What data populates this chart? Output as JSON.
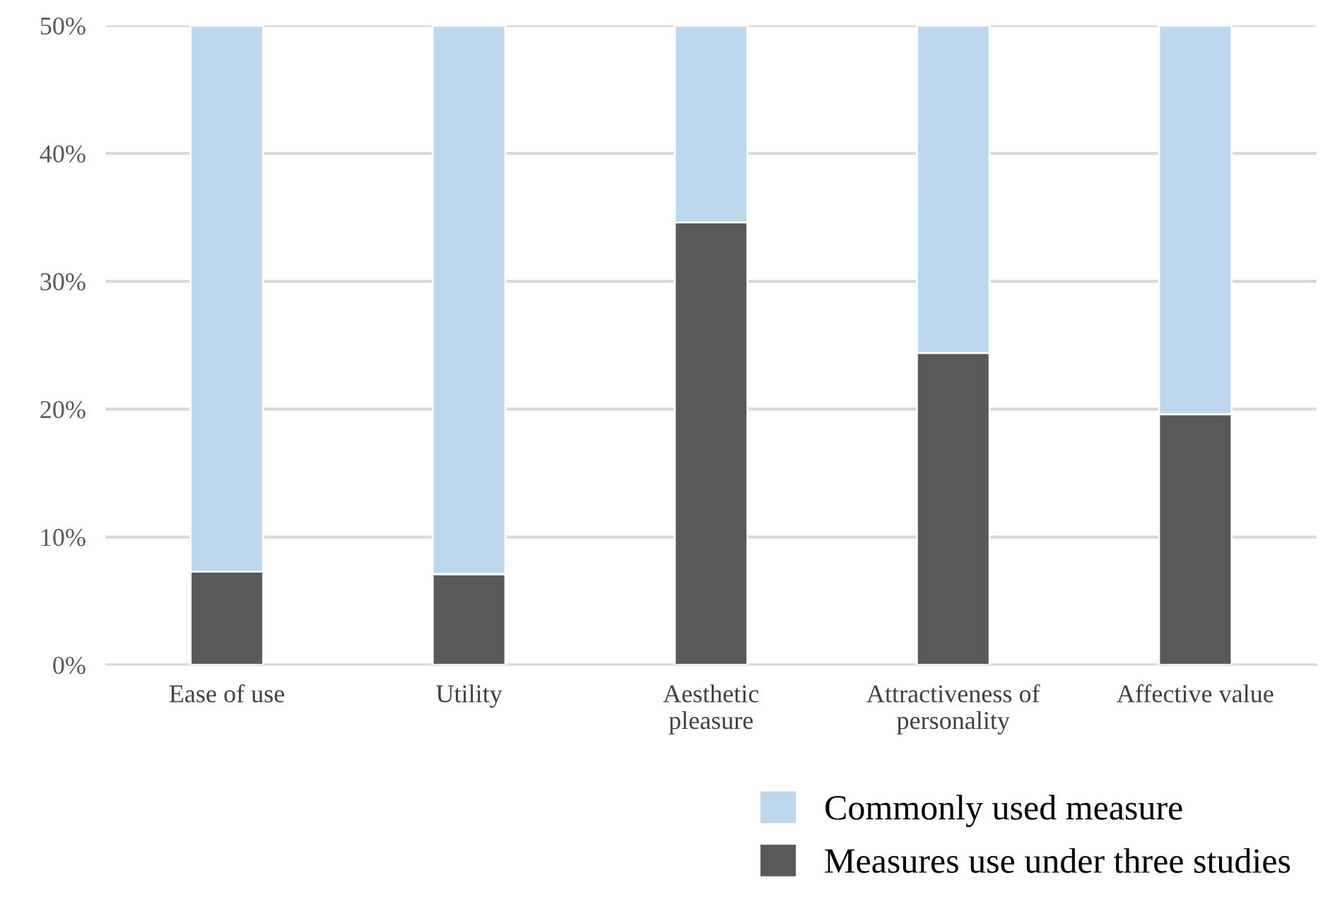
{
  "chart_data": {
    "type": "bar",
    "stacked": true,
    "categories": [
      "Ease of use",
      "Utility",
      "Aesthetic\npleasure",
      "Attractiveness of\npersonality",
      "Affective value"
    ],
    "series": [
      {
        "name": "Measures use under three studies",
        "color": "#595959",
        "values": [
          7.3,
          7.1,
          34.6,
          24.4,
          19.6
        ]
      },
      {
        "name": "Commonly used measure",
        "color": "#bdd7ee",
        "values": [
          42.7,
          42.9,
          15.4,
          25.6,
          30.4
        ]
      }
    ],
    "ylim": [
      0,
      50
    ],
    "yticks": [
      {
        "value": 0,
        "label": "0%"
      },
      {
        "value": 10,
        "label": "10%"
      },
      {
        "value": 20,
        "label": "20%"
      },
      {
        "value": 30,
        "label": "30%"
      },
      {
        "value": 40,
        "label": "40%"
      },
      {
        "value": 50,
        "label": "50%"
      }
    ],
    "grid": "y",
    "legend": "bottom right"
  }
}
